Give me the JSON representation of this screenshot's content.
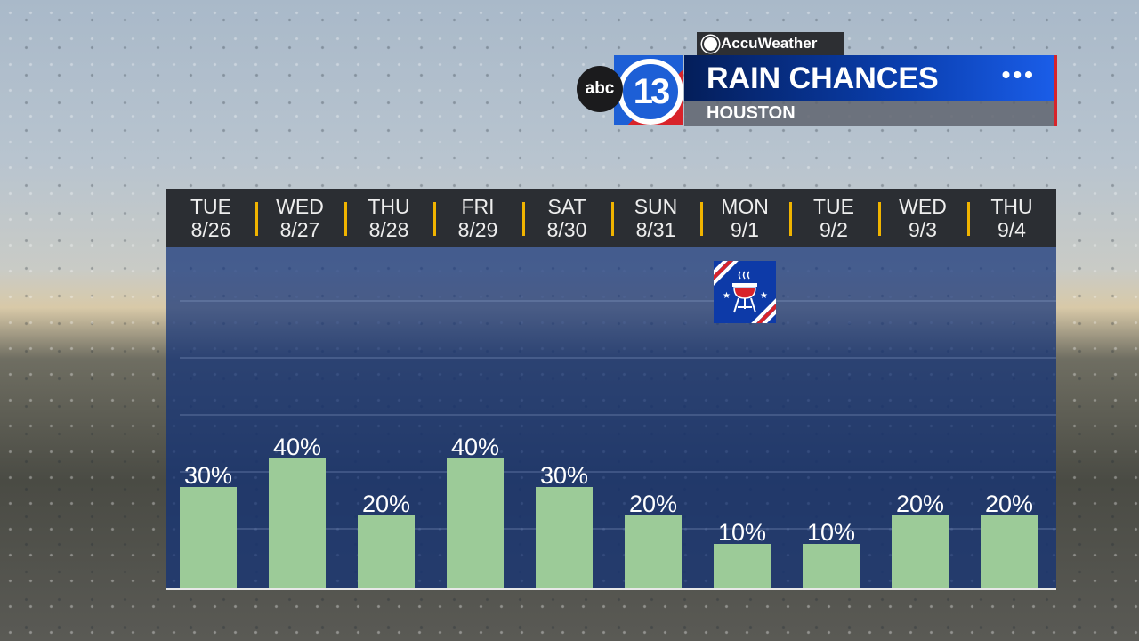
{
  "brand": {
    "accuweather": "AccuWeather",
    "station_abc": "abc",
    "station_num": "13",
    "title": "RAIN CHANCES",
    "location": "HOUSTON",
    "menu_icon": "ellipsis-icon"
  },
  "holiday_icon": {
    "name": "grill-labor-day-icon",
    "day": "MON 9/1"
  },
  "colors": {
    "bar": "#9ccb98",
    "plot_bg": "#123278",
    "header_bg": "#2b2e33",
    "divider": "#f0b400"
  },
  "chart_data": {
    "type": "bar",
    "categories": [
      {
        "day": "TUE",
        "date": "8/26"
      },
      {
        "day": "WED",
        "date": "8/27"
      },
      {
        "day": "THU",
        "date": "8/28"
      },
      {
        "day": "FRI",
        "date": "8/29"
      },
      {
        "day": "SAT",
        "date": "8/30"
      },
      {
        "day": "SUN",
        "date": "8/31"
      },
      {
        "day": "MON",
        "date": "9/1"
      },
      {
        "day": "TUE",
        "date": "9/2"
      },
      {
        "day": "WED",
        "date": "9/3"
      },
      {
        "day": "THU",
        "date": "9/4"
      }
    ],
    "values": [
      30,
      40,
      20,
      40,
      30,
      20,
      10,
      10,
      20,
      20
    ],
    "labels": [
      "30%",
      "40%",
      "20%",
      "40%",
      "30%",
      "20%",
      "10%",
      "10%",
      "20%",
      "20%"
    ],
    "unit": "%",
    "ylim": [
      0,
      100
    ],
    "grid": true
  }
}
